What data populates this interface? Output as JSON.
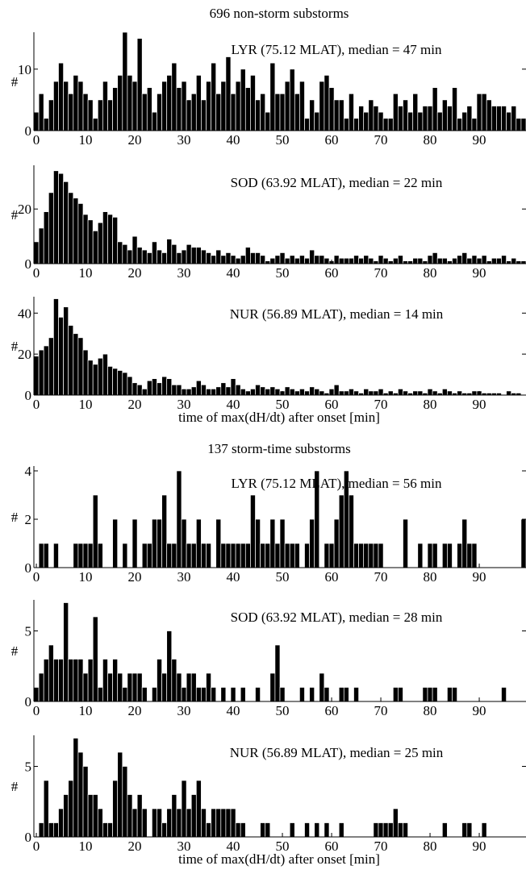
{
  "figure": {
    "group_titles": [
      "696 non-storm substorms",
      "137 storm-time substorms"
    ]
  },
  "chart_data": [
    {
      "type": "bar",
      "group": "696 non-storm substorms",
      "panel_label": "LYR (75.12 MLAT), median = 47 min",
      "ylabel": "#",
      "xlabel": "",
      "xlim": [
        -0.5,
        99.5
      ],
      "ylim": [
        0,
        16
      ],
      "xticks": [
        0,
        10,
        20,
        30,
        40,
        50,
        60,
        70,
        80,
        90
      ],
      "yticks": [
        0,
        10
      ],
      "x": [
        0,
        1,
        2,
        3,
        4,
        5,
        6,
        7,
        8,
        9,
        10,
        11,
        12,
        13,
        14,
        15,
        16,
        17,
        18,
        19,
        20,
        21,
        22,
        23,
        24,
        25,
        26,
        27,
        28,
        29,
        30,
        31,
        32,
        33,
        34,
        35,
        36,
        37,
        38,
        39,
        40,
        41,
        42,
        43,
        44,
        45,
        46,
        47,
        48,
        49,
        50,
        51,
        52,
        53,
        54,
        55,
        56,
        57,
        58,
        59,
        60,
        61,
        62,
        63,
        64,
        65,
        66,
        67,
        68,
        69,
        70,
        71,
        72,
        73,
        74,
        75,
        76,
        77,
        78,
        79,
        80,
        81,
        82,
        83,
        84,
        85,
        86,
        87,
        88,
        89,
        90,
        91,
        92,
        93,
        94,
        95,
        96,
        97,
        98,
        99
      ],
      "values": [
        3,
        6,
        2,
        5,
        8,
        11,
        8,
        6,
        9,
        8,
        6,
        5,
        2,
        5,
        8,
        5,
        7,
        9,
        16,
        9,
        8,
        15,
        6,
        7,
        3,
        6,
        8,
        9,
        11,
        7,
        8,
        5,
        6,
        9,
        5,
        8,
        11,
        6,
        8,
        12,
        6,
        8,
        10,
        7,
        9,
        5,
        6,
        3,
        11,
        6,
        6,
        8,
        10,
        6,
        8,
        2,
        5,
        3,
        8,
        9,
        7,
        5,
        5,
        2,
        6,
        2,
        4,
        3,
        5,
        4,
        3,
        2,
        2,
        6,
        4,
        5,
        3,
        6,
        3,
        4,
        4,
        7,
        3,
        5,
        4,
        7,
        2,
        3,
        4,
        2,
        6,
        6,
        5,
        4,
        4,
        4,
        3,
        4,
        2,
        2
      ]
    },
    {
      "type": "bar",
      "group": "696 non-storm substorms",
      "panel_label": "SOD (63.92 MLAT), median = 22 min",
      "ylabel": "#",
      "xlabel": "",
      "xlim": [
        -0.5,
        99.5
      ],
      "ylim": [
        0,
        36
      ],
      "xticks": [
        0,
        10,
        20,
        30,
        40,
        50,
        60,
        70,
        80,
        90
      ],
      "yticks": [
        0,
        20
      ],
      "x": [
        0,
        1,
        2,
        3,
        4,
        5,
        6,
        7,
        8,
        9,
        10,
        11,
        12,
        13,
        14,
        15,
        16,
        17,
        18,
        19,
        20,
        21,
        22,
        23,
        24,
        25,
        26,
        27,
        28,
        29,
        30,
        31,
        32,
        33,
        34,
        35,
        36,
        37,
        38,
        39,
        40,
        41,
        42,
        43,
        44,
        45,
        46,
        47,
        48,
        49,
        50,
        51,
        52,
        53,
        54,
        55,
        56,
        57,
        58,
        59,
        60,
        61,
        62,
        63,
        64,
        65,
        66,
        67,
        68,
        69,
        70,
        71,
        72,
        73,
        74,
        75,
        76,
        77,
        78,
        79,
        80,
        81,
        82,
        83,
        84,
        85,
        86,
        87,
        88,
        89,
        90,
        91,
        92,
        93,
        94,
        95,
        96,
        97,
        98,
        99
      ],
      "values": [
        8,
        13,
        19,
        26,
        34,
        33,
        30,
        26,
        24,
        22,
        18,
        16,
        12,
        15,
        19,
        18,
        17,
        8,
        7,
        5,
        10,
        6,
        5,
        4,
        8,
        5,
        4,
        9,
        7,
        4,
        5,
        7,
        6,
        6,
        5,
        4,
        3,
        5,
        3,
        4,
        3,
        2,
        3,
        6,
        4,
        4,
        3,
        1,
        2,
        3,
        4,
        2,
        3,
        2,
        3,
        2,
        5,
        3,
        3,
        2,
        1,
        3,
        2,
        2,
        2,
        3,
        2,
        3,
        2,
        1,
        3,
        2,
        1,
        2,
        3,
        1,
        1,
        2,
        2,
        1,
        3,
        4,
        2,
        2,
        1,
        2,
        3,
        4,
        2,
        3,
        2,
        3,
        1,
        2,
        2,
        3,
        1,
        2,
        1,
        1
      ]
    },
    {
      "type": "bar",
      "group": "696 non-storm substorms",
      "panel_label": "NUR (56.89 MLAT), median = 14 min",
      "ylabel": "#",
      "xlabel": "time of max(dH/dt) after onset [min]",
      "xlim": [
        -0.5,
        99.5
      ],
      "ylim": [
        0,
        48
      ],
      "xticks": [
        0,
        10,
        20,
        30,
        40,
        50,
        60,
        70,
        80,
        90
      ],
      "yticks": [
        0,
        20,
        40
      ],
      "x": [
        0,
        1,
        2,
        3,
        4,
        5,
        6,
        7,
        8,
        9,
        10,
        11,
        12,
        13,
        14,
        15,
        16,
        17,
        18,
        19,
        20,
        21,
        22,
        23,
        24,
        25,
        26,
        27,
        28,
        29,
        30,
        31,
        32,
        33,
        34,
        35,
        36,
        37,
        38,
        39,
        40,
        41,
        42,
        43,
        44,
        45,
        46,
        47,
        48,
        49,
        50,
        51,
        52,
        53,
        54,
        55,
        56,
        57,
        58,
        59,
        60,
        61,
        62,
        63,
        64,
        65,
        66,
        67,
        68,
        69,
        70,
        71,
        72,
        73,
        74,
        75,
        76,
        77,
        78,
        79,
        80,
        81,
        82,
        83,
        84,
        85,
        86,
        87,
        88,
        89,
        90,
        91,
        92,
        93,
        94,
        95,
        96,
        97,
        98,
        99
      ],
      "values": [
        19,
        22,
        24,
        28,
        47,
        38,
        43,
        34,
        30,
        28,
        22,
        17,
        15,
        18,
        20,
        14,
        13,
        12,
        11,
        9,
        6,
        5,
        3,
        7,
        8,
        6,
        9,
        8,
        5,
        5,
        3,
        3,
        4,
        7,
        5,
        3,
        3,
        4,
        6,
        4,
        8,
        5,
        3,
        2,
        3,
        5,
        4,
        3,
        4,
        3,
        2,
        4,
        3,
        2,
        3,
        2,
        4,
        3,
        2,
        1,
        3,
        5,
        2,
        2,
        3,
        2,
        1,
        3,
        2,
        2,
        3,
        1,
        2,
        1,
        3,
        2,
        1,
        2,
        2,
        1,
        3,
        2,
        1,
        3,
        2,
        1,
        2,
        1,
        1,
        2,
        2,
        1,
        1,
        1,
        1,
        0,
        2,
        1,
        1,
        0
      ]
    },
    {
      "type": "bar",
      "group": "137 storm-time substorms",
      "panel_label": "LYR (75.12 MLAT), median = 56 min",
      "ylabel": "#",
      "xlabel": "",
      "xlim": [
        -0.5,
        99.5
      ],
      "ylim": [
        0,
        4.2
      ],
      "xticks": [
        0,
        10,
        20,
        30,
        40,
        50,
        60,
        70,
        80,
        90
      ],
      "yticks": [
        0,
        2,
        4
      ],
      "x": [
        0,
        1,
        2,
        3,
        4,
        5,
        6,
        7,
        8,
        9,
        10,
        11,
        12,
        13,
        14,
        15,
        16,
        17,
        18,
        19,
        20,
        21,
        22,
        23,
        24,
        25,
        26,
        27,
        28,
        29,
        30,
        31,
        32,
        33,
        34,
        35,
        36,
        37,
        38,
        39,
        40,
        41,
        42,
        43,
        44,
        45,
        46,
        47,
        48,
        49,
        50,
        51,
        52,
        53,
        54,
        55,
        56,
        57,
        58,
        59,
        60,
        61,
        62,
        63,
        64,
        65,
        66,
        67,
        68,
        69,
        70,
        71,
        72,
        73,
        74,
        75,
        76,
        77,
        78,
        79,
        80,
        81,
        82,
        83,
        84,
        85,
        86,
        87,
        88,
        89,
        90,
        91,
        92,
        93,
        94,
        95,
        96,
        97,
        98,
        99
      ],
      "values": [
        0,
        1,
        1,
        0,
        1,
        0,
        0,
        0,
        1,
        1,
        1,
        1,
        3,
        1,
        0,
        0,
        2,
        0,
        1,
        0,
        2,
        0,
        1,
        1,
        2,
        2,
        3,
        1,
        1,
        4,
        2,
        1,
        1,
        2,
        1,
        1,
        0,
        2,
        1,
        1,
        1,
        1,
        1,
        1,
        3,
        2,
        1,
        1,
        2,
        1,
        2,
        1,
        1,
        1,
        0,
        1,
        2,
        4,
        0,
        1,
        1,
        2,
        3,
        4,
        3,
        1,
        1,
        1,
        1,
        1,
        1,
        0,
        0,
        0,
        0,
        2,
        0,
        0,
        1,
        0,
        1,
        1,
        0,
        1,
        1,
        0,
        1,
        2,
        1,
        1,
        0,
        0,
        0,
        0,
        0,
        0,
        0,
        0,
        0,
        2
      ]
    },
    {
      "type": "bar",
      "group": "137 storm-time substorms",
      "panel_label": "SOD (63.92 MLAT), median = 28 min",
      "ylabel": "#",
      "xlabel": "",
      "xlim": [
        -0.5,
        99.5
      ],
      "ylim": [
        0,
        7.2
      ],
      "xticks": [
        0,
        10,
        20,
        30,
        40,
        50,
        60,
        70,
        80,
        90
      ],
      "yticks": [
        0,
        5
      ],
      "x": [
        0,
        1,
        2,
        3,
        4,
        5,
        6,
        7,
        8,
        9,
        10,
        11,
        12,
        13,
        14,
        15,
        16,
        17,
        18,
        19,
        20,
        21,
        22,
        23,
        24,
        25,
        26,
        27,
        28,
        29,
        30,
        31,
        32,
        33,
        34,
        35,
        36,
        37,
        38,
        39,
        40,
        41,
        42,
        43,
        44,
        45,
        46,
        47,
        48,
        49,
        50,
        51,
        52,
        53,
        54,
        55,
        56,
        57,
        58,
        59,
        60,
        61,
        62,
        63,
        64,
        65,
        66,
        67,
        68,
        69,
        70,
        71,
        72,
        73,
        74,
        75,
        76,
        77,
        78,
        79,
        80,
        81,
        82,
        83,
        84,
        85,
        86,
        87,
        88,
        89,
        90,
        91,
        92,
        93,
        94,
        95,
        96,
        97,
        98,
        99
      ],
      "values": [
        1,
        2,
        3,
        4,
        3,
        3,
        7,
        3,
        3,
        3,
        2,
        3,
        6,
        1,
        3,
        2,
        3,
        2,
        1,
        2,
        2,
        2,
        1,
        0,
        1,
        3,
        2,
        5,
        3,
        2,
        1,
        2,
        2,
        1,
        1,
        2,
        1,
        0,
        1,
        0,
        1,
        0,
        1,
        0,
        0,
        1,
        0,
        0,
        2,
        4,
        1,
        0,
        0,
        0,
        1,
        0,
        1,
        0,
        2,
        1,
        0,
        0,
        1,
        1,
        0,
        1,
        0,
        0,
        0,
        0,
        0,
        0,
        0,
        1,
        1,
        0,
        0,
        0,
        0,
        1,
        1,
        1,
        0,
        0,
        1,
        1,
        0,
        0,
        0,
        0,
        0,
        0,
        0,
        0,
        0,
        1,
        0,
        0,
        0,
        0
      ]
    },
    {
      "type": "bar",
      "group": "137 storm-time substorms",
      "panel_label": "NUR (56.89 MLAT), median = 25 min",
      "ylabel": "#",
      "xlabel": "time of max(dH/dt) after onset [min]",
      "xlim": [
        -0.5,
        99.5
      ],
      "ylim": [
        0,
        7.2
      ],
      "xticks": [
        0,
        10,
        20,
        30,
        40,
        50,
        60,
        70,
        80,
        90
      ],
      "yticks": [
        0,
        5
      ],
      "x": [
        0,
        1,
        2,
        3,
        4,
        5,
        6,
        7,
        8,
        9,
        10,
        11,
        12,
        13,
        14,
        15,
        16,
        17,
        18,
        19,
        20,
        21,
        22,
        23,
        24,
        25,
        26,
        27,
        28,
        29,
        30,
        31,
        32,
        33,
        34,
        35,
        36,
        37,
        38,
        39,
        40,
        41,
        42,
        43,
        44,
        45,
        46,
        47,
        48,
        49,
        50,
        51,
        52,
        53,
        54,
        55,
        56,
        57,
        58,
        59,
        60,
        61,
        62,
        63,
        64,
        65,
        66,
        67,
        68,
        69,
        70,
        71,
        72,
        73,
        74,
        75,
        76,
        77,
        78,
        79,
        80,
        81,
        82,
        83,
        84,
        85,
        86,
        87,
        88,
        89,
        90,
        91,
        92,
        93,
        94,
        95,
        96,
        97,
        98,
        99
      ],
      "values": [
        0,
        1,
        4,
        1,
        1,
        2,
        3,
        4,
        7,
        6,
        5,
        3,
        3,
        2,
        1,
        1,
        4,
        6,
        5,
        3,
        2,
        3,
        2,
        0,
        2,
        2,
        1,
        2,
        3,
        2,
        4,
        2,
        3,
        4,
        2,
        1,
        2,
        2,
        2,
        2,
        2,
        1,
        1,
        0,
        0,
        0,
        1,
        1,
        0,
        0,
        0,
        0,
        1,
        0,
        0,
        1,
        0,
        1,
        0,
        1,
        0,
        0,
        1,
        0,
        0,
        0,
        0,
        0,
        0,
        1,
        1,
        1,
        1,
        2,
        1,
        1,
        0,
        0,
        0,
        0,
        0,
        0,
        0,
        1,
        0,
        0,
        0,
        1,
        1,
        0,
        0,
        1,
        0,
        0,
        0,
        0,
        0,
        0,
        0,
        0
      ]
    }
  ]
}
